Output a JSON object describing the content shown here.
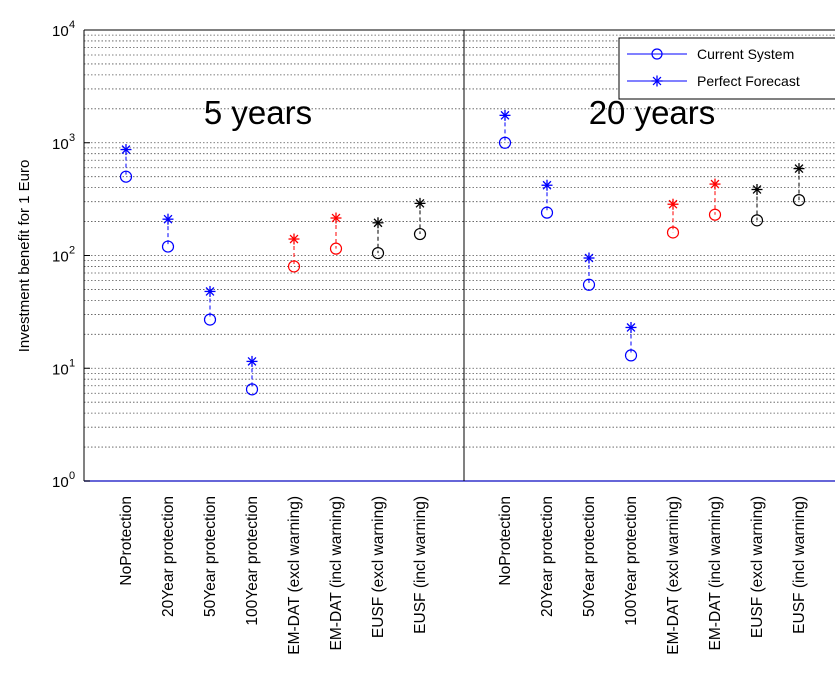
{
  "chart_data": {
    "type": "scatter",
    "ylabel": "Investment benefit for 1 Euro",
    "yscale": "log",
    "ylim": [
      1,
      10000
    ],
    "y_ticks": [
      {
        "base": "10",
        "exp": "0"
      },
      {
        "base": "10",
        "exp": "1"
      },
      {
        "base": "10",
        "exp": "2"
      },
      {
        "base": "10",
        "exp": "3"
      },
      {
        "base": "10",
        "exp": "4"
      }
    ],
    "grid": "horizontal minor dotted",
    "legend": {
      "placement": "top-right",
      "entries": [
        {
          "name": "Current System",
          "marker": "circle",
          "color": "#0000ff"
        },
        {
          "name": "Perfect Forecast",
          "marker": "asterisk",
          "color": "#0000ff"
        }
      ]
    },
    "categories": [
      "NoProtection",
      "20Year protection",
      "50Year protection",
      "100Year protection",
      "EM-DAT (excl warning)",
      "EM-DAT (incl warning)",
      "EUSF (excl warning)",
      "EUSF (incl warning)"
    ],
    "category_colors": [
      "#0000ff",
      "#0000ff",
      "#0000ff",
      "#0000ff",
      "#ff0000",
      "#ff0000",
      "#000000",
      "#000000"
    ],
    "panels": [
      {
        "label": "5 years",
        "series": [
          {
            "name": "Current System",
            "values": [
              500,
              120,
              27,
              6.5,
              80,
              115,
              105,
              155
            ]
          },
          {
            "name": "Perfect Forecast",
            "values": [
              870,
              210,
              48,
              11.5,
              140,
              215,
              195,
              290
            ]
          }
        ]
      },
      {
        "label": "20 years",
        "series": [
          {
            "name": "Current System",
            "values": [
              1000,
              240,
              55,
              13,
              160,
              230,
              205,
              310
            ]
          },
          {
            "name": "Perfect Forecast",
            "values": [
              1750,
              420,
              95,
              23,
              285,
              430,
              385,
              590
            ]
          }
        ]
      }
    ]
  }
}
